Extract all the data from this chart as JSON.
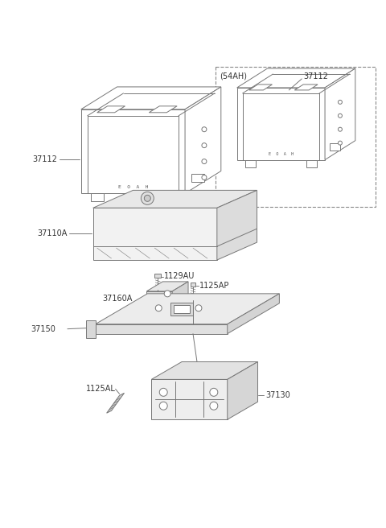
{
  "bg_color": "#ffffff",
  "lc": "#777777",
  "lc2": "#444444",
  "fig_width": 4.8,
  "fig_height": 6.56,
  "dpi": 100,
  "labels": {
    "37112_left": "37112",
    "37112_right": "37112",
    "54AH": "(54AH)",
    "37110A": "37110A",
    "1129AU": "1129AU",
    "37160A": "37160A",
    "1125AP": "1125AP",
    "37150": "37150",
    "1125AL": "1125AL",
    "37130": "37130"
  },
  "font_size": 7
}
